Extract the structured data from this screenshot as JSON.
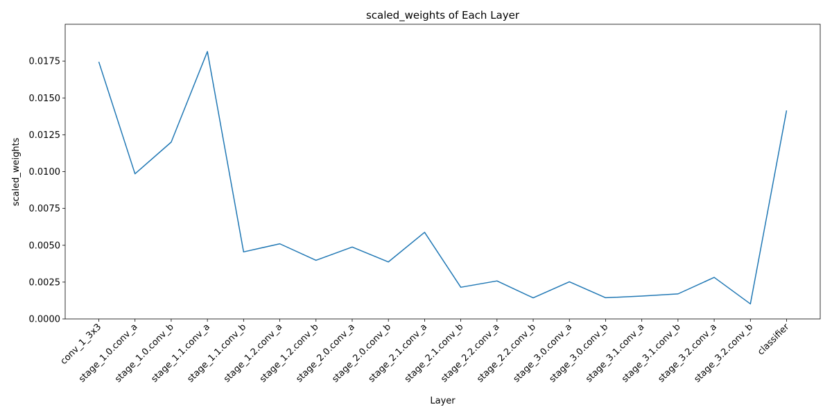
{
  "chart_data": {
    "type": "line",
    "title": "scaled_weights of Each Layer",
    "xlabel": "Layer",
    "ylabel": "scaled_weights",
    "ylim": [
      0,
      0.02
    ],
    "yticks": [
      "0.0000",
      "0.0025",
      "0.0050",
      "0.0075",
      "0.0100",
      "0.0125",
      "0.0150",
      "0.0175"
    ],
    "grid": false,
    "categories": [
      "conv_1_3x3",
      "stage_1.0.conv_a",
      "stage_1.0.conv_b",
      "stage_1.1.conv_a",
      "stage_1.1.conv_b",
      "stage_1.2.conv_a",
      "stage_1.2.conv_b",
      "stage_2.0.conv_a",
      "stage_2.0.conv_b",
      "stage_2.1.conv_a",
      "stage_2.1.conv_b",
      "stage_2.2.conv_a",
      "stage_2.2.conv_b",
      "stage_3.0.conv_a",
      "stage_3.0.conv_b",
      "stage_3.1.conv_a",
      "stage_3.1.conv_b",
      "stage_3.2.conv_a",
      "stage_3.2.conv_b",
      "classifier"
    ],
    "series": [
      {
        "color": "#1f77b4",
        "values": [
          0.01745,
          0.00985,
          0.012,
          0.01815,
          0.00455,
          0.0051,
          0.00398,
          0.00488,
          0.00387,
          0.00588,
          0.00215,
          0.00258,
          0.00143,
          0.00252,
          0.00144,
          0.00155,
          0.0017,
          0.00282,
          0.00102,
          0.01415
        ]
      }
    ]
  }
}
